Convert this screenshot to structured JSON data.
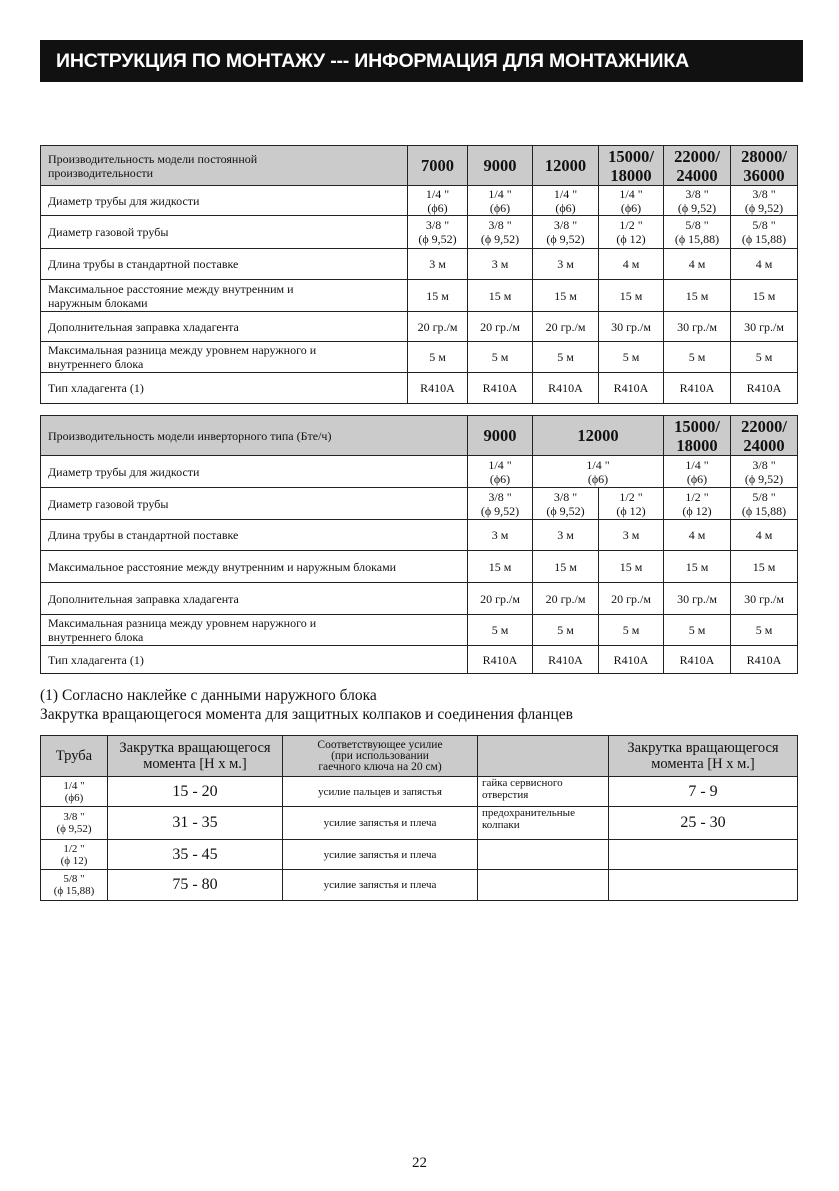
{
  "title": "ИНСТРУКЦИЯ ПО МОНТАЖУ --- ИНФОРМАЦИЯ ДЛЯ МОНТАЖНИКА",
  "table_fixed": {
    "header_label": "Производительность модели постоянной\nпроизводительности",
    "columns": [
      "7000",
      "9000",
      "12000",
      "15000/\n18000",
      "22000/\n24000",
      "28000/\n36000"
    ],
    "rows": [
      {
        "label": "Диаметр трубы для жидкости",
        "values": [
          "1/4 \"\n(ϕ6)",
          "1/4 \"\n(ϕ6)",
          "1/4 \"\n(ϕ6)",
          "1/4 \"\n(ϕ6)",
          "3/8 \"\n(ϕ 9,52)",
          "3/8 \"\n(ϕ 9,52)"
        ]
      },
      {
        "label": "Диаметр газовой трубы",
        "values": [
          "3/8 \"\n(ϕ 9,52)",
          "3/8 \"\n(ϕ 9,52)",
          "3/8 \"\n(ϕ 9,52)",
          "1/2 \"\n(ϕ 12)",
          "5/8 \"\n(ϕ 15,88)",
          "5/8 \"\n(ϕ 15,88)"
        ]
      },
      {
        "label": "Длина трубы в стандартной поставке",
        "values": [
          "3 м",
          "3 м",
          "3 м",
          "4 м",
          "4 м",
          "4 м"
        ]
      },
      {
        "label": "Максимальное расстояние между внутренним и\nнаружным блоками",
        "values": [
          "15 м",
          "15 м",
          "15 м",
          "15 м",
          "15 м",
          "15 м"
        ]
      },
      {
        "label": "Дополнительная заправка хладагента",
        "values": [
          "20 гр./м",
          "20 гр./м",
          "20 гр./м",
          "30 гр./м",
          "30 гр./м",
          "30 гр./м"
        ]
      },
      {
        "label": "Максимальная разница между уровнем наружного и\nвнутреннего блока",
        "values": [
          "5 м",
          "5 м",
          "5 м",
          "5 м",
          "5 м",
          "5 м"
        ]
      },
      {
        "label": "Тип хладагента (1)",
        "values": [
          "R410A",
          "R410A",
          "R410A",
          "R410A",
          "R410A",
          "R410A"
        ]
      }
    ]
  },
  "table_inverter": {
    "header_label": "Производительность модели инверторного типа (Бте/ч)",
    "columns": [
      [
        "9000",
        1
      ],
      [
        "12000",
        2
      ],
      [
        "15000/\n18000",
        1
      ],
      [
        "22000/\n24000",
        1
      ]
    ],
    "rows": [
      {
        "label": "Диаметр трубы для жидкости",
        "values": [
          [
            "1/4 \"\n(ϕ6)",
            1
          ],
          [
            "1/4 \"\n(ϕ6)",
            2
          ],
          [
            "1/4 \"\n(ϕ6)",
            1
          ],
          [
            "3/8 \"\n(ϕ 9,52)",
            1
          ]
        ]
      },
      {
        "label": "Диаметр газовой трубы",
        "values": [
          [
            "3/8 \"\n(ϕ 9,52)",
            1
          ],
          [
            "3/8 \"\n(ϕ 9,52)",
            1
          ],
          [
            "1/2 \"\n(ϕ 12)",
            1
          ],
          [
            "1/2 \"\n(ϕ 12)",
            1
          ],
          [
            "5/8 \"\n(ϕ 15,88)",
            1
          ]
        ]
      },
      {
        "label": "Длина трубы в стандартной поставке",
        "values": [
          [
            "3 м",
            1
          ],
          [
            "3 м",
            1
          ],
          [
            "3 м",
            1
          ],
          [
            "4 м",
            1
          ],
          [
            "4 м",
            1
          ]
        ]
      },
      {
        "label": "Максимальное расстояние между внутренним и наружным блоками",
        "values": [
          [
            "15 м",
            1
          ],
          [
            "15 м",
            1
          ],
          [
            "15 м",
            1
          ],
          [
            "15 м",
            1
          ],
          [
            "15 м",
            1
          ]
        ]
      },
      {
        "label": "Дополнительная заправка хладагента",
        "values": [
          [
            "20 гр./м",
            1
          ],
          [
            "20 гр./м",
            1
          ],
          [
            "20 гр./м",
            1
          ],
          [
            "30 гр./м",
            1
          ],
          [
            "30 гр./м",
            1
          ]
        ]
      },
      {
        "label": "Максимальная разница между уровнем наружного и\nвнутреннего блока",
        "values": [
          [
            "5 м",
            1
          ],
          [
            "5 м",
            1
          ],
          [
            "5 м",
            1
          ],
          [
            "5 м",
            1
          ],
          [
            "5 м",
            1
          ]
        ]
      },
      {
        "label": "Тип хладагента (1)",
        "values": [
          [
            "R410A",
            1
          ],
          [
            "R410A",
            1
          ],
          [
            "R410A",
            1
          ],
          [
            "R410A",
            1
          ],
          [
            "R410A",
            1
          ]
        ]
      }
    ]
  },
  "notes": {
    "footnote": "(1) Согласно наклейке с данными наружного блока",
    "torque_heading": "Закрутка вращающегося момента для защитных колпаков и соединения фланцев"
  },
  "table_torque": {
    "headers": [
      "Труба",
      "Закрутка  вращающегося\nмомента [Н х м.]",
      "Соответствующее усилие\n(при использовании\nгаечного ключа на 20 см)",
      "",
      "Закрутка  вращающегося\nмомента [Н х м.]"
    ],
    "rows": [
      [
        "1/4 \"\n(ϕ6)",
        "15 - 20",
        "усилие пальцев и запястья",
        "гайка сервисного\nотверстия",
        "7 - 9"
      ],
      [
        "3/8 \"\n(ϕ 9,52)",
        "31 - 35",
        "усилие запястья и плеча",
        "предохранительные\nколпаки",
        "25 - 30"
      ],
      [
        "1/2 \"\n(ϕ 12)",
        "35 - 45",
        "усилие запястья и плеча",
        "",
        ""
      ],
      [
        "5/8 \"\n(ϕ 15,88)",
        "75 - 80",
        "усилие запястья и плеча",
        "",
        ""
      ]
    ]
  },
  "page_number": "22"
}
